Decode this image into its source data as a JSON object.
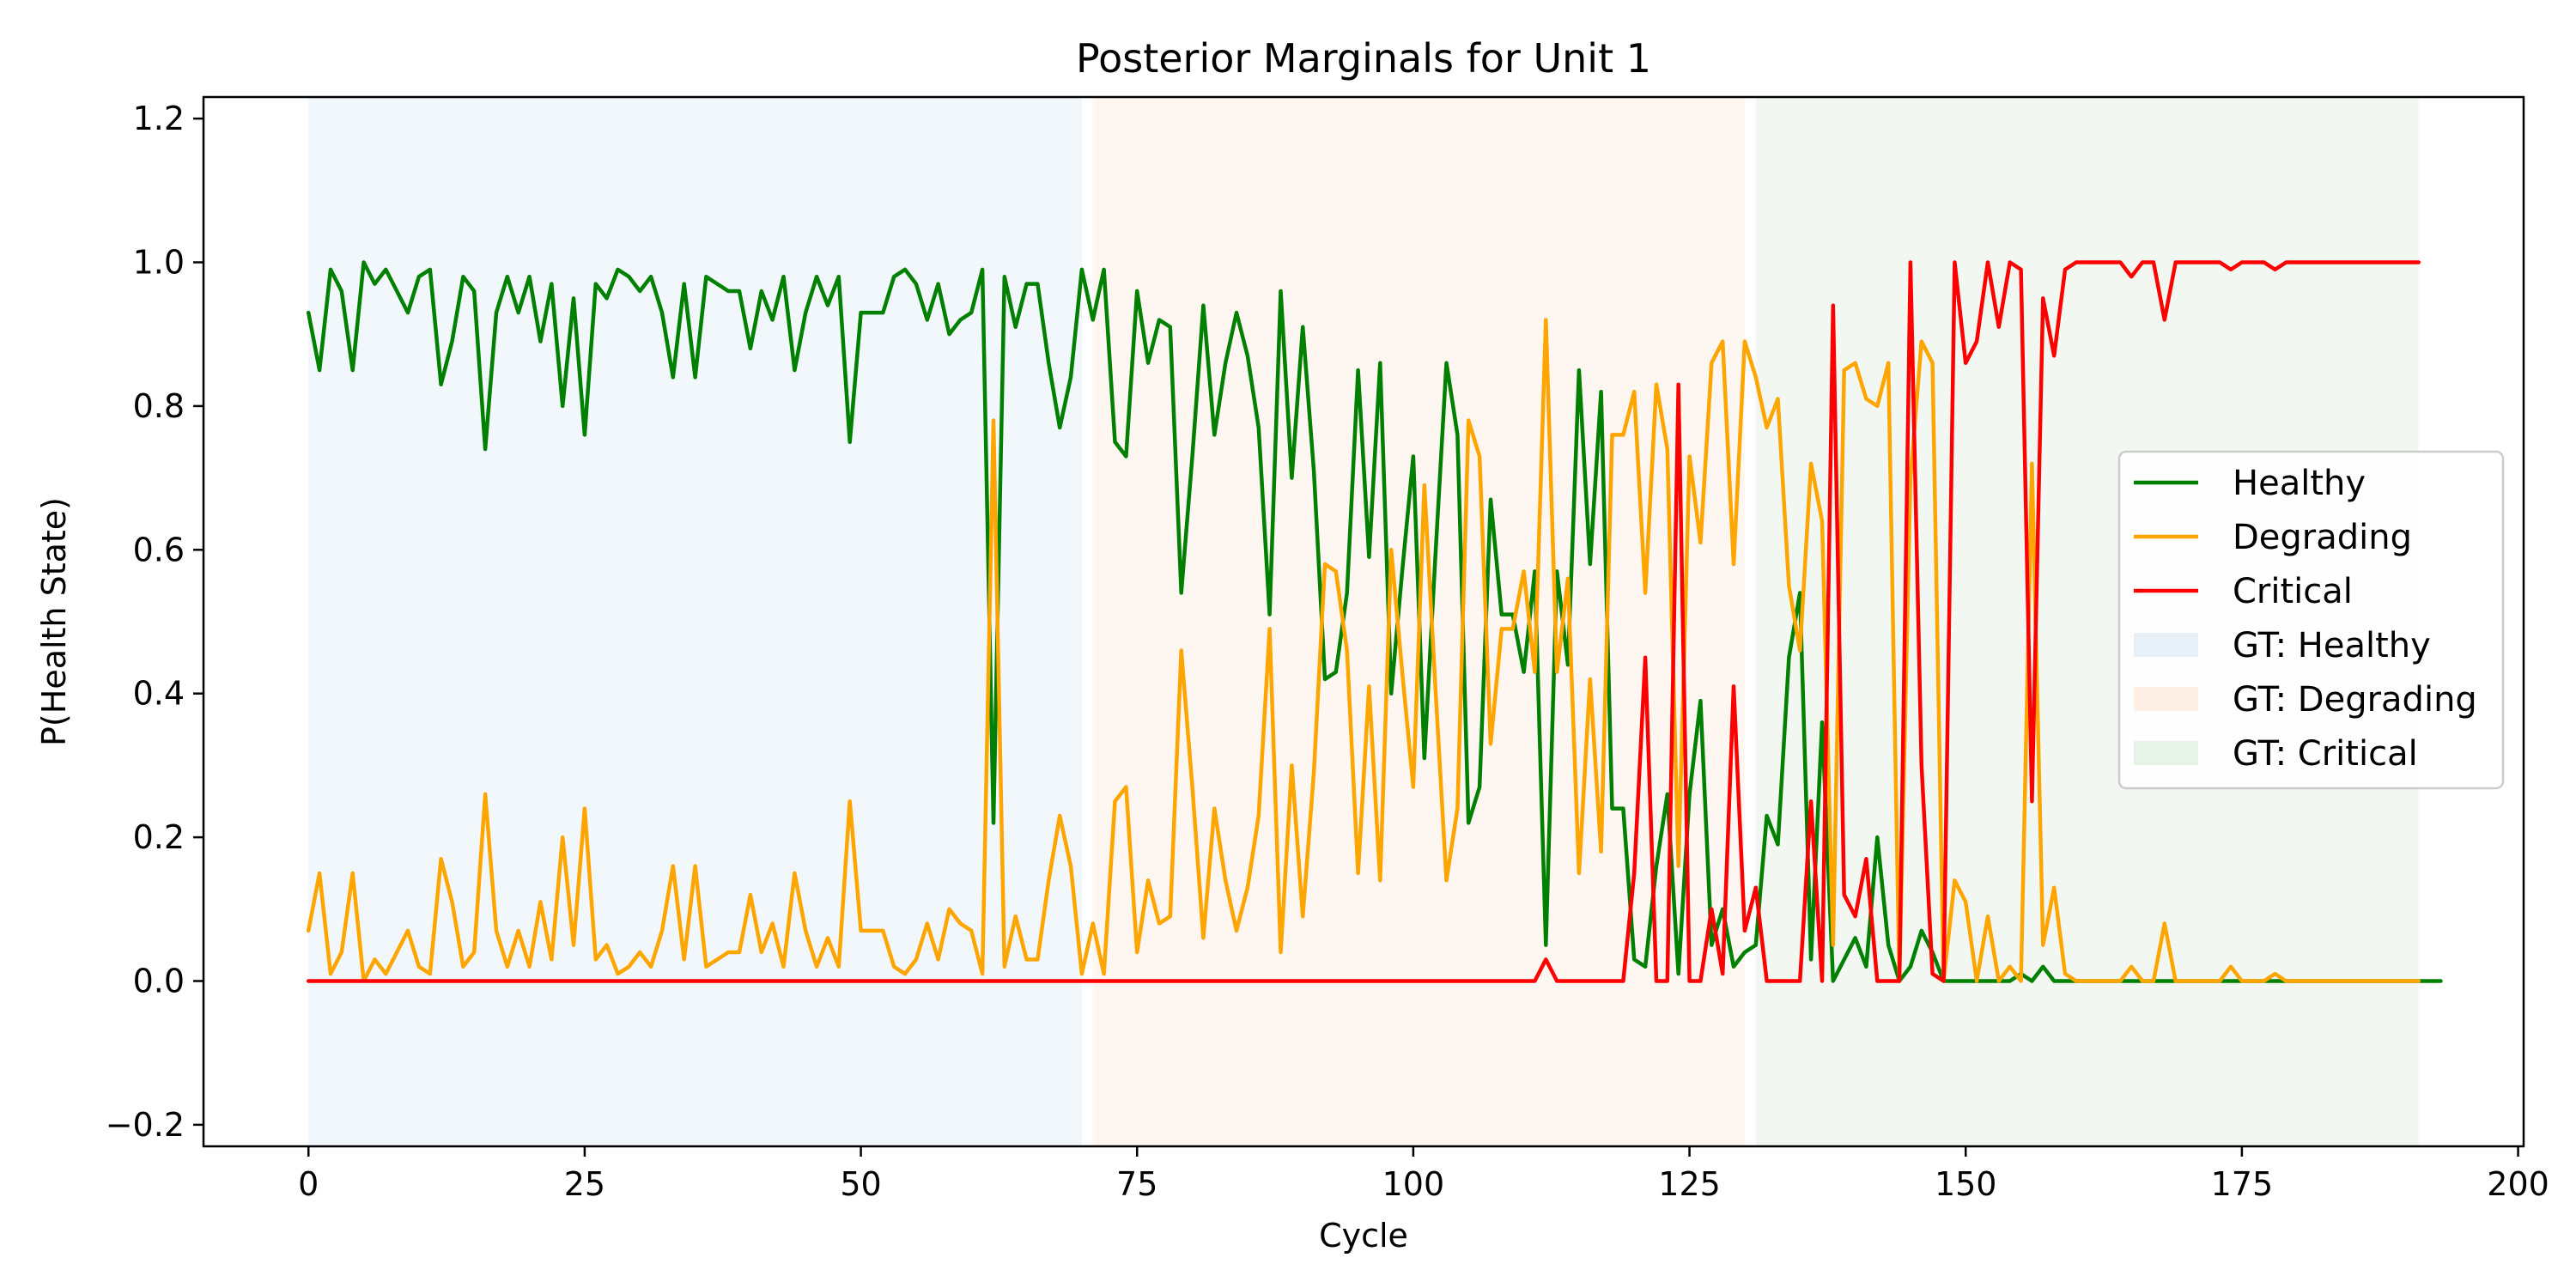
{
  "chart_data": {
    "type": "line",
    "title": "Posterior Marginals for Unit 1",
    "xlabel": "Cycle",
    "ylabel": "P(Health State)",
    "xlim": [
      -9.5,
      200.5
    ],
    "ylim": [
      -0.23,
      1.23
    ],
    "xticks": [
      0,
      25,
      50,
      75,
      100,
      125,
      150,
      175,
      200
    ],
    "yticks": [
      -0.2,
      0.0,
      0.2,
      0.4,
      0.6,
      0.8,
      1.0,
      1.2
    ],
    "ytick_labels": [
      "−0.2",
      "0.0",
      "0.2",
      "0.4",
      "0.6",
      "0.8",
      "1.0",
      "1.2"
    ],
    "grid": false,
    "legend_position": "center-right",
    "bands": [
      {
        "name": "GT: Healthy",
        "start": 0,
        "end": 70,
        "color": "#e6f0f6"
      },
      {
        "name": "GT: Degrading",
        "start": 71,
        "end": 130,
        "color": "#fdefe4"
      },
      {
        "name": "GT: Critical",
        "start": 131,
        "end": 191,
        "color": "#e7f3e6"
      }
    ],
    "series": [
      {
        "name": "Healthy",
        "color": "#008000",
        "values": [
          0.93,
          0.85,
          0.99,
          0.96,
          0.85,
          1.0,
          0.97,
          0.99,
          0.96,
          0.93,
          0.98,
          0.99,
          0.83,
          0.89,
          0.98,
          0.96,
          0.74,
          0.93,
          0.98,
          0.93,
          0.98,
          0.89,
          0.97,
          0.8,
          0.95,
          0.76,
          0.97,
          0.95,
          0.99,
          0.98,
          0.96,
          0.98,
          0.93,
          0.84,
          0.97,
          0.84,
          0.98,
          0.97,
          0.96,
          0.96,
          0.88,
          0.96,
          0.92,
          0.98,
          0.85,
          0.93,
          0.98,
          0.94,
          0.98,
          0.75,
          0.93,
          0.93,
          0.93,
          0.98,
          0.99,
          0.97,
          0.92,
          0.97,
          0.9,
          0.92,
          0.93,
          0.99,
          0.22,
          0.98,
          0.91,
          0.97,
          0.97,
          0.86,
          0.77,
          0.84,
          0.99,
          0.92,
          0.99,
          0.75,
          0.73,
          0.96,
          0.86,
          0.92,
          0.91,
          0.54,
          0.73,
          0.94,
          0.76,
          0.86,
          0.93,
          0.87,
          0.77,
          0.51,
          0.96,
          0.7,
          0.91,
          0.71,
          0.42,
          0.43,
          0.54,
          0.85,
          0.59,
          0.86,
          0.4,
          0.57,
          0.73,
          0.31,
          0.59,
          0.86,
          0.76,
          0.22,
          0.27,
          0.67,
          0.51,
          0.51,
          0.43,
          0.57,
          0.05,
          0.57,
          0.44,
          0.85,
          0.58,
          0.82,
          0.24,
          0.24,
          0.03,
          0.02,
          0.16,
          0.26,
          0.01,
          0.26,
          0.39,
          0.05,
          0.1,
          0.02,
          0.04,
          0.05,
          0.23,
          0.19,
          0.45,
          0.54,
          0.03,
          0.36,
          0.0,
          0.03,
          0.06,
          0.02,
          0.2,
          0.05,
          0.0,
          0.02,
          0.07,
          0.04,
          0.0,
          0.0,
          0.0,
          0.0,
          0.0,
          0.0,
          0.0,
          0.01,
          0.0,
          0.02,
          0.0,
          0.0,
          0.0,
          0.0,
          0.0,
          0.0,
          0.0,
          0.0,
          0.0,
          0.0,
          0.0,
          0.0,
          0.0,
          0.0,
          0.0,
          0.0,
          0.0,
          0.0,
          0.0,
          0.0,
          0.0,
          0.0,
          0.0,
          0.0,
          0.0,
          0.0,
          0.0,
          0.0,
          0.0,
          0.0,
          0.0,
          0.0,
          0.0,
          0.0,
          0.0,
          0.0
        ]
      },
      {
        "name": "Degrading",
        "color": "#ffa500",
        "values": [
          0.07,
          0.15,
          0.01,
          0.04,
          0.15,
          0.0,
          0.03,
          0.01,
          0.04,
          0.07,
          0.02,
          0.01,
          0.17,
          0.11,
          0.02,
          0.04,
          0.26,
          0.07,
          0.02,
          0.07,
          0.02,
          0.11,
          0.03,
          0.2,
          0.05,
          0.24,
          0.03,
          0.05,
          0.01,
          0.02,
          0.04,
          0.02,
          0.07,
          0.16,
          0.03,
          0.16,
          0.02,
          0.03,
          0.04,
          0.04,
          0.12,
          0.04,
          0.08,
          0.02,
          0.15,
          0.07,
          0.02,
          0.06,
          0.02,
          0.25,
          0.07,
          0.07,
          0.07,
          0.02,
          0.01,
          0.03,
          0.08,
          0.03,
          0.1,
          0.08,
          0.07,
          0.01,
          0.78,
          0.02,
          0.09,
          0.03,
          0.03,
          0.14,
          0.23,
          0.16,
          0.01,
          0.08,
          0.01,
          0.25,
          0.27,
          0.04,
          0.14,
          0.08,
          0.09,
          0.46,
          0.27,
          0.06,
          0.24,
          0.14,
          0.07,
          0.13,
          0.23,
          0.49,
          0.04,
          0.3,
          0.09,
          0.29,
          0.58,
          0.57,
          0.46,
          0.15,
          0.41,
          0.14,
          0.6,
          0.43,
          0.27,
          0.69,
          0.41,
          0.14,
          0.24,
          0.78,
          0.73,
          0.33,
          0.49,
          0.49,
          0.57,
          0.43,
          0.92,
          0.43,
          0.56,
          0.15,
          0.42,
          0.18,
          0.76,
          0.76,
          0.82,
          0.54,
          0.83,
          0.74,
          0.16,
          0.73,
          0.61,
          0.86,
          0.89,
          0.58,
          0.89,
          0.84,
          0.77,
          0.81,
          0.55,
          0.46,
          0.72,
          0.64,
          0.05,
          0.85,
          0.86,
          0.81,
          0.8,
          0.86,
          0.0,
          0.7,
          0.89,
          0.86,
          0.0,
          0.14,
          0.11,
          0.0,
          0.09,
          0.0,
          0.02,
          0.0,
          0.72,
          0.05,
          0.13,
          0.01,
          0.0,
          0.0,
          0.0,
          0.0,
          0.0,
          0.02,
          0.0,
          0.0,
          0.08,
          0.0,
          0.0,
          0.0,
          0.0,
          0.0,
          0.02,
          0.0,
          0.0,
          0.0,
          0.01,
          0.0,
          0.0,
          0.0,
          0.0,
          0.0,
          0.0,
          0.0,
          0.0,
          0.0,
          0.0,
          0.0,
          0.0,
          0.0
        ]
      },
      {
        "name": "Critical",
        "color": "#ff0000",
        "values": [
          0.0,
          0.0,
          0.0,
          0.0,
          0.0,
          0.0,
          0.0,
          0.0,
          0.0,
          0.0,
          0.0,
          0.0,
          0.0,
          0.0,
          0.0,
          0.0,
          0.0,
          0.0,
          0.0,
          0.0,
          0.0,
          0.0,
          0.0,
          0.0,
          0.0,
          0.0,
          0.0,
          0.0,
          0.0,
          0.0,
          0.0,
          0.0,
          0.0,
          0.0,
          0.0,
          0.0,
          0.0,
          0.0,
          0.0,
          0.0,
          0.0,
          0.0,
          0.0,
          0.0,
          0.0,
          0.0,
          0.0,
          0.0,
          0.0,
          0.0,
          0.0,
          0.0,
          0.0,
          0.0,
          0.0,
          0.0,
          0.0,
          0.0,
          0.0,
          0.0,
          0.0,
          0.0,
          0.0,
          0.0,
          0.0,
          0.0,
          0.0,
          0.0,
          0.0,
          0.0,
          0.0,
          0.0,
          0.0,
          0.0,
          0.0,
          0.0,
          0.0,
          0.0,
          0.0,
          0.0,
          0.0,
          0.0,
          0.0,
          0.0,
          0.0,
          0.0,
          0.0,
          0.0,
          0.0,
          0.0,
          0.0,
          0.0,
          0.0,
          0.0,
          0.0,
          0.0,
          0.0,
          0.0,
          0.0,
          0.0,
          0.0,
          0.0,
          0.0,
          0.0,
          0.0,
          0.0,
          0.0,
          0.0,
          0.0,
          0.0,
          0.0,
          0.0,
          0.03,
          0.0,
          0.0,
          0.0,
          0.0,
          0.0,
          0.0,
          0.0,
          0.15,
          0.45,
          0.0,
          0.0,
          0.83,
          0.0,
          0.0,
          0.1,
          0.01,
          0.41,
          0.07,
          0.13,
          0.0,
          0.0,
          0.0,
          0.0,
          0.25,
          0.0,
          0.94,
          0.12,
          0.09,
          0.17,
          0.0,
          0.0,
          0.0,
          1.0,
          0.3,
          0.01,
          0.0,
          1.0,
          0.86,
          0.89,
          1.0,
          0.91,
          1.0,
          0.99,
          0.25,
          0.95,
          0.87,
          0.99,
          1.0,
          1.0,
          1.0,
          1.0,
          1.0,
          0.98,
          1.0,
          1.0,
          0.92,
          1.0,
          1.0,
          1.0,
          1.0,
          1.0,
          0.99,
          1.0,
          1.0,
          1.0,
          0.99,
          1.0,
          1.0,
          1.0,
          1.0,
          1.0,
          1.0,
          1.0,
          1.0,
          1.0,
          1.0,
          1.0,
          1.0,
          1.0
        ]
      }
    ]
  }
}
